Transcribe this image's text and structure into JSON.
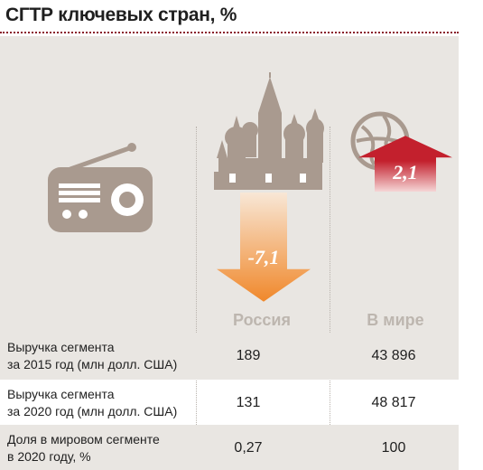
{
  "title": "СГТР ключевых стран, %",
  "chart_data": {
    "type": "bar",
    "categories": [
      "Россия",
      "В мире"
    ],
    "values": [
      -7.1,
      2.1
    ],
    "value_labels": [
      "-7,1",
      "2,1"
    ],
    "colors": {
      "russia_arrow": "#f0882b",
      "world_arrow": "#c3202d"
    }
  },
  "columns": [
    "Россия",
    "В мире"
  ],
  "table": [
    {
      "label_line1": "Выручка сегмента",
      "label_line2": "за 2015 год (млн долл. США)",
      "russia": "189",
      "world": "43 896"
    },
    {
      "label_line1": "Выручка сегмента",
      "label_line2": "за 2020 год (млн долл. США)",
      "russia": "131",
      "world": "48 817"
    },
    {
      "label_line1": "Доля в мировом сегменте",
      "label_line2": "в 2020 году, %",
      "russia": "0,27",
      "world": "100"
    }
  ],
  "icons": {
    "radio": "radio-icon",
    "russia": "kremlin-cathedral-icon",
    "world": "globe-icon"
  },
  "colors": {
    "accent": "#8a1e2a",
    "panel": "#e9e6e2",
    "icon": "#a99a8f"
  }
}
